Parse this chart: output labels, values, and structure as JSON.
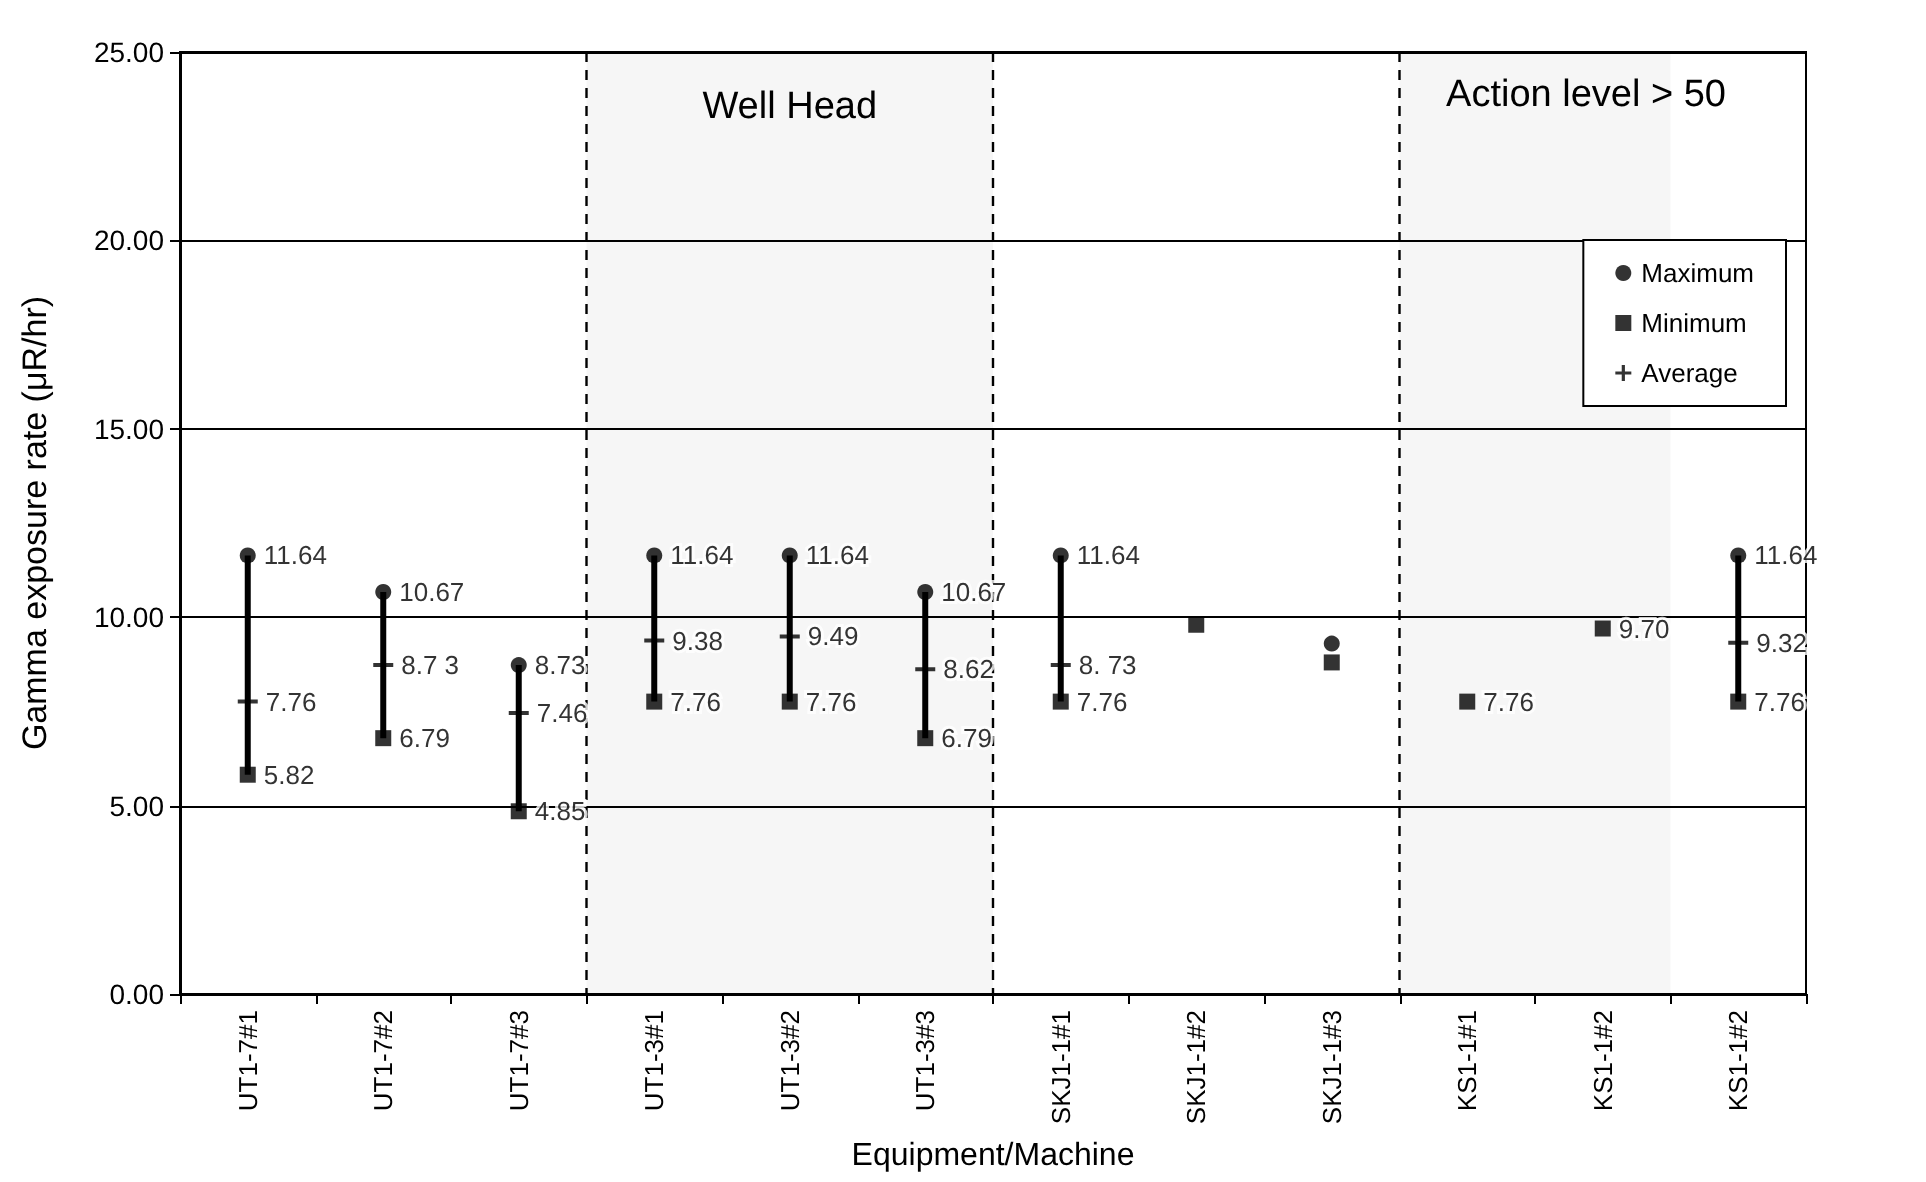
{
  "chart_data": {
    "type": "scatter",
    "xlabel": "Equipment/Machine",
    "ylabel": "Gamma exposure rate (μR/hr)",
    "categories": [
      "UT1-7#1",
      "UT1-7#2",
      "UT1-7#3",
      "UT1-3#1",
      "UT1-3#2",
      "UT1-3#3",
      "SKJ1-1#1",
      "SKJ1-1#2",
      "SKJ1-1#3",
      "KS1-1#1",
      "KS1-1#2",
      "KS1-1#2"
    ],
    "series": [
      {
        "name": "Maximum",
        "color": "#000000",
        "marker": "circle",
        "values": [
          11.64,
          10.67,
          8.73,
          11.64,
          11.64,
          10.67,
          11.64,
          null,
          9.3,
          null,
          null,
          11.64
        ],
        "value_labels": [
          "11.64",
          "10.67",
          "8.73",
          "11.64",
          "11.64",
          "10.67",
          "11.64",
          null,
          null,
          null,
          null,
          "11.64"
        ]
      },
      {
        "name": "Minimum",
        "color": "#000000",
        "marker": "square",
        "values": [
          5.82,
          6.79,
          4.85,
          7.76,
          7.76,
          6.79,
          7.76,
          9.8,
          8.8,
          7.76,
          9.7,
          7.76
        ],
        "value_labels": [
          "5.82",
          "6.79",
          "4.85",
          "7.76",
          "7.76",
          "6.79",
          "7.76",
          null,
          null,
          "7.76",
          "9.70",
          "7.76"
        ]
      },
      {
        "type": "bar",
        "color": "#000000",
        "base": [
          5.82,
          6.79,
          4.85,
          7.76,
          7.76,
          6.79,
          7.76,
          null,
          null,
          null,
          null,
          7.76
        ],
        "values": [
          5.82,
          3.88,
          3.88,
          3.88,
          3.88,
          3.88,
          3.88,
          null,
          null,
          null,
          null,
          3.88
        ]
      },
      {
        "name": "Average",
        "color": "#000000",
        "marker": "cross",
        "values": [
          7.76,
          8.73,
          7.46,
          9.38,
          9.49,
          8.62,
          8.73,
          null,
          null,
          null,
          null,
          9.32
        ],
        "value_labels": [
          "7.76",
          "8.7 3",
          "7.46",
          "9.38",
          "9.49",
          "8.62",
          "8. 73",
          null,
          null,
          null,
          null,
          "9.32"
        ]
      }
    ],
    "ylim": [
      0,
      25
    ],
    "yticks": [
      {
        "value": 0,
        "label": "0.00"
      },
      {
        "value": 5,
        "label": "5.00"
      },
      {
        "value": 10,
        "label": "10.00"
      },
      {
        "value": 15,
        "label": "15.00"
      },
      {
        "value": 20,
        "label": "20.00"
      },
      {
        "value": 25,
        "label": "25.00"
      }
    ],
    "grid": "y",
    "legend": "top right",
    "bands": [
      {
        "axis": "x",
        "from": "UT1-3#1",
        "to": "UT1-3#3",
        "label": "Well Head"
      },
      {
        "axis": "x",
        "from": "KS1-1#1",
        "to": "KS1-1#2",
        "label": null
      }
    ],
    "annotations": [
      "Action level > 50"
    ]
  }
}
